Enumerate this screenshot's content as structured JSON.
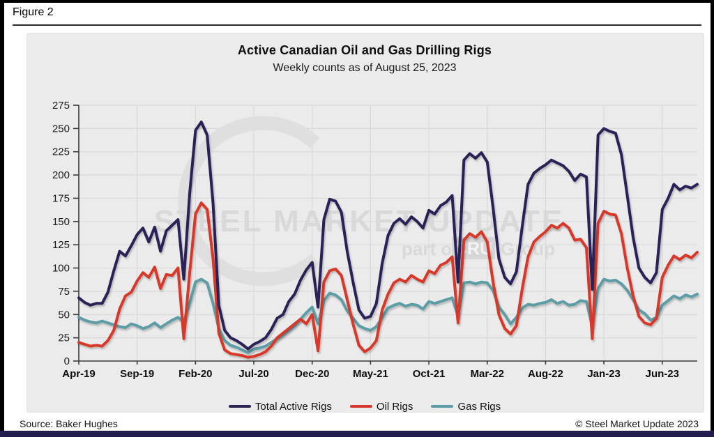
{
  "figure_label": "Figure 2",
  "title": "Active Canadian Oil and Gas Drilling Rigs",
  "subtitle": "Weekly counts as of August 25, 2023",
  "source": "Source: Baker Hughes",
  "copyright": "© Steel Market Update 2023",
  "watermark": {
    "main": "STEEL MARKET UPDATE",
    "part": "part of the",
    "cru": "CRU",
    "group": "Group"
  },
  "colors": {
    "total": "#2a2456",
    "oil": "#d6392c",
    "gas": "#5d9da6",
    "grid": "#d9d9d9",
    "panel": "#ebebeb",
    "axis": "#3a3a3a",
    "tick_text": "#1a1a1a",
    "watermark": "#d8d8d8",
    "footer_bar": "#221d4e"
  },
  "chart_data": {
    "type": "line",
    "title": "Active Canadian Oil and Gas Drilling Rigs",
    "subtitle": "Weekly counts as of August 25, 2023",
    "x_unit": "months since Apr-2019",
    "x_step_months": 0.5,
    "x_tick_months": [
      0,
      5,
      10,
      15,
      20,
      25,
      30,
      35,
      40,
      45,
      50
    ],
    "x_tick_labels": [
      "Apr-19",
      "Sep-19",
      "Feb-20",
      "Jul-20",
      "Dec-20",
      "May-21",
      "Oct-21",
      "Mar-22",
      "Aug-22",
      "Jan-23",
      "Jun-23"
    ],
    "ylim": [
      0,
      275
    ],
    "y_ticks": [
      0,
      25,
      50,
      75,
      100,
      125,
      150,
      175,
      200,
      225,
      250,
      275
    ],
    "grid": true,
    "legend_position": "bottom",
    "series": [
      {
        "name": "Total Active Rigs",
        "color_key": "total",
        "values": [
          68,
          63,
          60,
          62,
          62,
          74,
          97,
          118,
          113,
          124,
          136,
          143,
          128,
          144,
          118,
          140,
          146,
          152,
          88,
          180,
          248,
          257,
          243,
          170,
          60,
          33,
          25,
          22,
          18,
          13,
          18,
          21,
          25,
          34,
          46,
          50,
          64,
          72,
          87,
          98,
          106,
          58,
          152,
          174,
          172,
          160,
          118,
          85,
          55,
          46,
          48,
          62,
          105,
          135,
          148,
          153,
          147,
          155,
          150,
          143,
          162,
          158,
          167,
          171,
          178,
          85,
          216,
          223,
          218,
          224,
          214,
          165,
          110,
          90,
          83,
          96,
          145,
          190,
          202,
          207,
          211,
          216,
          213,
          210,
          204,
          194,
          201,
          198,
          77,
          243,
          250,
          247,
          245,
          222,
          178,
          133,
          100,
          90,
          84,
          95,
          163,
          175,
          190,
          184,
          188,
          186,
          190
        ]
      },
      {
        "name": "Oil Rigs",
        "color_key": "oil",
        "values": [
          20,
          18,
          16,
          17,
          16,
          22,
          33,
          56,
          70,
          74,
          86,
          95,
          90,
          101,
          78,
          93,
          92,
          100,
          24,
          95,
          158,
          170,
          163,
          110,
          30,
          12,
          8,
          7,
          6,
          4,
          5,
          7,
          10,
          16,
          25,
          30,
          35,
          40,
          45,
          40,
          50,
          11,
          85,
          97,
          99,
          92,
          66,
          40,
          17,
          10,
          14,
          22,
          55,
          72,
          84,
          88,
          85,
          92,
          88,
          85,
          97,
          94,
          103,
          106,
          112,
          41,
          130,
          137,
          133,
          139,
          128,
          85,
          50,
          35,
          29,
          38,
          78,
          112,
          128,
          134,
          139,
          146,
          143,
          148,
          143,
          130,
          131,
          122,
          24,
          148,
          161,
          158,
          157,
          137,
          100,
          70,
          48,
          41,
          39,
          46,
          90,
          103,
          113,
          109,
          114,
          111,
          117
        ]
      },
      {
        "name": "Gas Rigs",
        "color_key": "gas",
        "values": [
          47,
          44,
          42,
          41,
          43,
          41,
          39,
          37,
          36,
          40,
          38,
          35,
          37,
          41,
          36,
          40,
          44,
          47,
          42,
          62,
          85,
          88,
          84,
          62,
          35,
          22,
          17,
          15,
          12,
          9,
          13,
          14,
          16,
          20,
          24,
          28,
          33,
          38,
          45,
          52,
          58,
          40,
          65,
          73,
          71,
          66,
          54,
          46,
          38,
          35,
          33,
          37,
          47,
          57,
          60,
          62,
          59,
          61,
          60,
          56,
          64,
          62,
          64,
          66,
          68,
          48,
          84,
          85,
          83,
          85,
          84,
          76,
          58,
          50,
          40,
          47,
          57,
          61,
          60,
          62,
          63,
          66,
          62,
          64,
          60,
          61,
          65,
          64,
          37,
          78,
          88,
          86,
          87,
          83,
          76,
          66,
          55,
          51,
          44,
          47,
          60,
          65,
          70,
          67,
          71,
          69,
          72
        ]
      }
    ]
  }
}
